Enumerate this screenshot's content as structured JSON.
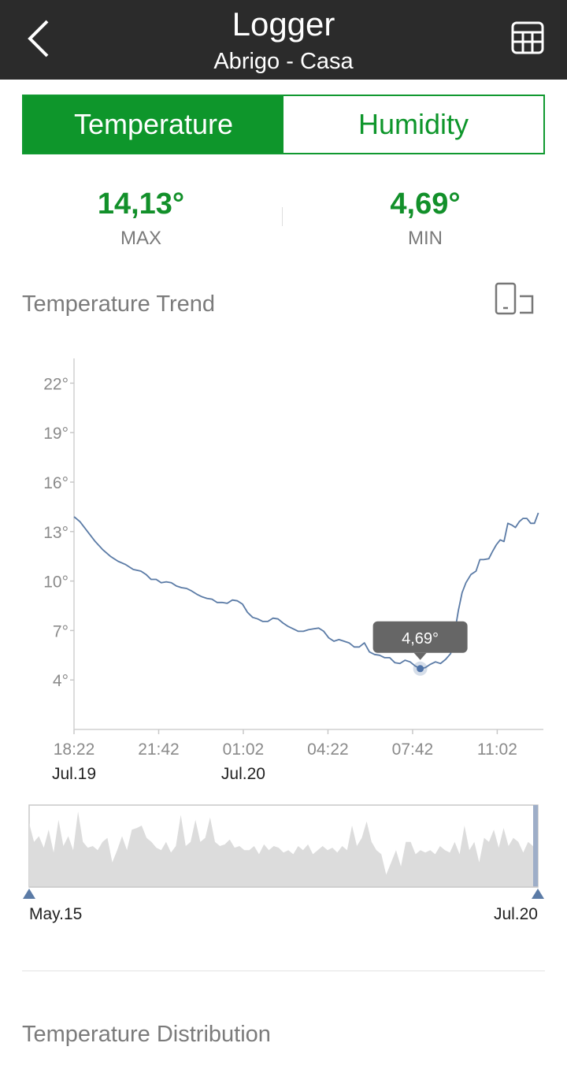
{
  "header": {
    "title": "Logger",
    "subtitle": "Abrigo - Casa",
    "back_icon": "chevron-left-icon",
    "table_icon": "table-icon"
  },
  "tabs": [
    {
      "label": "Temperature",
      "active": true
    },
    {
      "label": "Humidity",
      "active": false
    }
  ],
  "stats": {
    "max": {
      "value": "14,13°",
      "label": "MAX"
    },
    "min": {
      "value": "4,69°",
      "label": "MIN"
    }
  },
  "trend": {
    "title": "Temperature Trend",
    "rotate_icon": "rotate-screen-icon"
  },
  "chart_data": {
    "type": "line",
    "title": "",
    "y_ticks": [
      "22°",
      "19°",
      "16°",
      "13°",
      "10°",
      "7°",
      "4°"
    ],
    "y_values": [
      22,
      19,
      16,
      13,
      10,
      7,
      4
    ],
    "ylim": [
      1,
      23.5
    ],
    "x_ticks": [
      "18:22",
      "21:42",
      "01:02",
      "04:22",
      "07:42",
      "11:02"
    ],
    "x_tick_hours": [
      18.367,
      21.7,
      25.033,
      28.367,
      31.7,
      35.033
    ],
    "date_labels": [
      {
        "text": "Jul.19",
        "at_hour": 18.367
      },
      {
        "text": "Jul.20",
        "at_hour": 25.033
      }
    ],
    "xlim_hours": [
      18.367,
      36.85
    ],
    "grid": false,
    "series": [
      {
        "color": "#5b7ba6",
        "points": [
          [
            18.37,
            13.9
          ],
          [
            18.6,
            13.6
          ],
          [
            18.9,
            13.0
          ],
          [
            19.2,
            12.4
          ],
          [
            19.5,
            11.9
          ],
          [
            19.8,
            11.5
          ],
          [
            20.1,
            11.2
          ],
          [
            20.4,
            11.0
          ],
          [
            20.7,
            10.7
          ],
          [
            21.0,
            10.6
          ],
          [
            21.2,
            10.4
          ],
          [
            21.4,
            10.1
          ],
          [
            21.6,
            10.1
          ],
          [
            21.8,
            9.9
          ],
          [
            22.0,
            9.95
          ],
          [
            22.2,
            9.9
          ],
          [
            22.4,
            9.7
          ],
          [
            22.6,
            9.6
          ],
          [
            22.8,
            9.55
          ],
          [
            23.0,
            9.4
          ],
          [
            23.2,
            9.2
          ],
          [
            23.4,
            9.05
          ],
          [
            23.6,
            8.95
          ],
          [
            23.8,
            8.9
          ],
          [
            24.0,
            8.7
          ],
          [
            24.2,
            8.7
          ],
          [
            24.4,
            8.65
          ],
          [
            24.6,
            8.85
          ],
          [
            24.8,
            8.8
          ],
          [
            25.0,
            8.6
          ],
          [
            25.2,
            8.1
          ],
          [
            25.4,
            7.8
          ],
          [
            25.6,
            7.7
          ],
          [
            25.8,
            7.55
          ],
          [
            26.0,
            7.55
          ],
          [
            26.2,
            7.75
          ],
          [
            26.4,
            7.7
          ],
          [
            26.6,
            7.45
          ],
          [
            26.8,
            7.25
          ],
          [
            27.0,
            7.1
          ],
          [
            27.2,
            6.95
          ],
          [
            27.4,
            6.95
          ],
          [
            27.6,
            7.05
          ],
          [
            27.8,
            7.1
          ],
          [
            28.0,
            7.15
          ],
          [
            28.2,
            6.95
          ],
          [
            28.4,
            6.55
          ],
          [
            28.6,
            6.35
          ],
          [
            28.8,
            6.45
          ],
          [
            29.0,
            6.35
          ],
          [
            29.2,
            6.25
          ],
          [
            29.4,
            6.0
          ],
          [
            29.6,
            6.0
          ],
          [
            29.8,
            6.25
          ],
          [
            30.0,
            5.7
          ],
          [
            30.2,
            5.55
          ],
          [
            30.4,
            5.5
          ],
          [
            30.6,
            5.35
          ],
          [
            30.8,
            5.35
          ],
          [
            31.0,
            5.05
          ],
          [
            31.2,
            5.0
          ],
          [
            31.4,
            5.2
          ],
          [
            31.6,
            5.1
          ],
          [
            31.8,
            4.85
          ],
          [
            32.0,
            4.69
          ],
          [
            32.2,
            4.75
          ],
          [
            32.4,
            4.95
          ],
          [
            32.6,
            5.1
          ],
          [
            32.8,
            5.0
          ],
          [
            33.0,
            5.25
          ],
          [
            33.2,
            5.6
          ],
          [
            33.35,
            6.8
          ],
          [
            33.5,
            8.2
          ],
          [
            33.65,
            9.3
          ],
          [
            33.8,
            9.9
          ],
          [
            34.0,
            10.4
          ],
          [
            34.2,
            10.6
          ],
          [
            34.35,
            11.3
          ],
          [
            34.5,
            11.3
          ],
          [
            34.7,
            11.35
          ],
          [
            34.85,
            11.8
          ],
          [
            35.0,
            12.2
          ],
          [
            35.15,
            12.5
          ],
          [
            35.3,
            12.4
          ],
          [
            35.45,
            13.5
          ],
          [
            35.6,
            13.4
          ],
          [
            35.75,
            13.25
          ],
          [
            35.9,
            13.6
          ],
          [
            36.05,
            13.8
          ],
          [
            36.2,
            13.8
          ],
          [
            36.35,
            13.5
          ],
          [
            36.5,
            13.5
          ],
          [
            36.65,
            14.13
          ]
        ]
      }
    ],
    "tooltip": {
      "text": "4,69°",
      "x_hour": 32.0,
      "y": 4.69
    }
  },
  "overview": {
    "start_label": "May.15",
    "end_label": "Jul.20",
    "values": [
      0.78,
      0.55,
      0.62,
      0.48,
      0.7,
      0.42,
      0.82,
      0.5,
      0.62,
      0.45,
      0.92,
      0.55,
      0.48,
      0.5,
      0.45,
      0.55,
      0.6,
      0.3,
      0.45,
      0.62,
      0.45,
      0.7,
      0.72,
      0.75,
      0.6,
      0.55,
      0.48,
      0.45,
      0.55,
      0.42,
      0.5,
      0.88,
      0.5,
      0.55,
      0.82,
      0.55,
      0.6,
      0.85,
      0.55,
      0.5,
      0.52,
      0.58,
      0.48,
      0.5,
      0.45,
      0.45,
      0.5,
      0.4,
      0.52,
      0.45,
      0.5,
      0.48,
      0.42,
      0.45,
      0.4,
      0.5,
      0.45,
      0.52,
      0.4,
      0.45,
      0.5,
      0.45,
      0.48,
      0.42,
      0.5,
      0.45,
      0.75,
      0.5,
      0.6,
      0.8,
      0.55,
      0.45,
      0.4,
      0.15,
      0.3,
      0.45,
      0.25,
      0.55,
      0.55,
      0.4,
      0.45,
      0.42,
      0.45,
      0.4,
      0.5,
      0.45,
      0.42,
      0.55,
      0.4,
      0.75,
      0.45,
      0.55,
      0.3,
      0.6,
      0.55,
      0.7,
      0.48,
      0.72,
      0.5,
      0.6,
      0.55,
      0.42,
      0.55,
      0.5,
      0.3
    ]
  },
  "distribution": {
    "title": "Temperature Distribution"
  }
}
